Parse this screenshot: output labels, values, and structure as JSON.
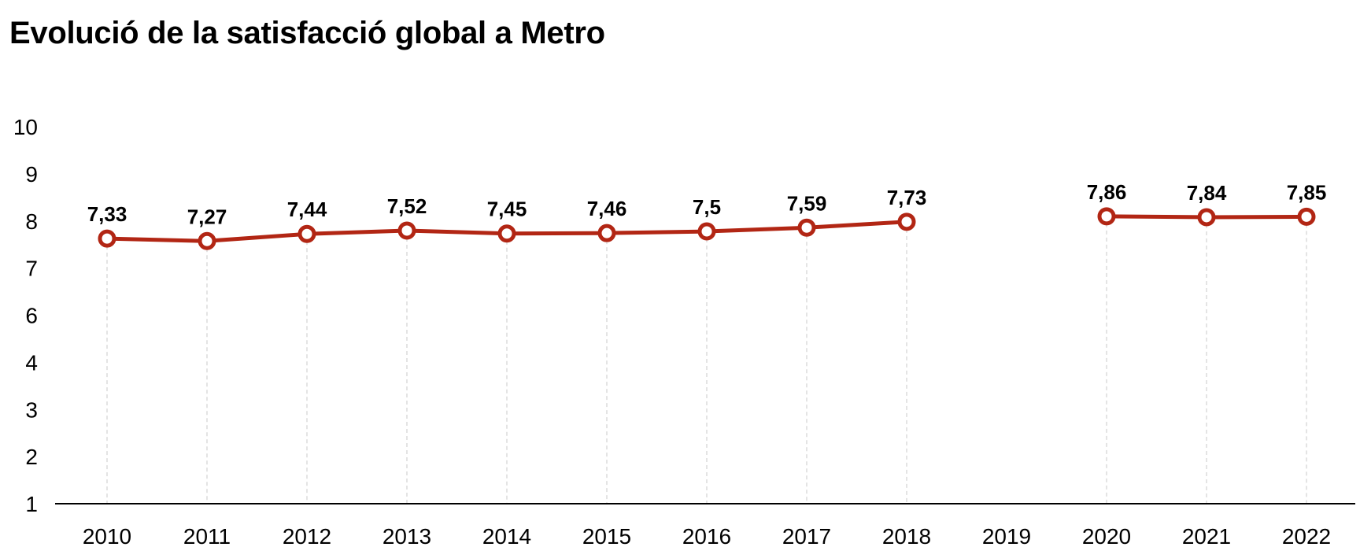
{
  "chart_data": {
    "type": "line",
    "title": "Evolució de la satisfacció global a Metro",
    "xlabel": "",
    "ylabel": "",
    "ylim": [
      1,
      10
    ],
    "y_ticks": [
      "1",
      "2",
      "3",
      "4",
      "6",
      "7",
      "8",
      "9",
      "10"
    ],
    "grid": "vertical dashed",
    "legend": "none",
    "categories": [
      "2010",
      "2011",
      "2012",
      "2013",
      "2014",
      "2015",
      "2016",
      "2017",
      "2018",
      "2019",
      "2020",
      "2021",
      "2022"
    ],
    "series": [
      {
        "values": [
          7.33,
          7.27,
          7.44,
          7.52,
          7.45,
          7.46,
          7.5,
          7.59,
          7.73,
          null,
          7.86,
          7.84,
          7.85
        ],
        "labels": [
          "7,33",
          "7,27",
          "7,44",
          "7,52",
          "7,45",
          "7,46",
          "7,5",
          "7,59",
          "7,73",
          "",
          "7,86",
          "7,84",
          "7,85"
        ],
        "color": "#b22614"
      }
    ]
  }
}
